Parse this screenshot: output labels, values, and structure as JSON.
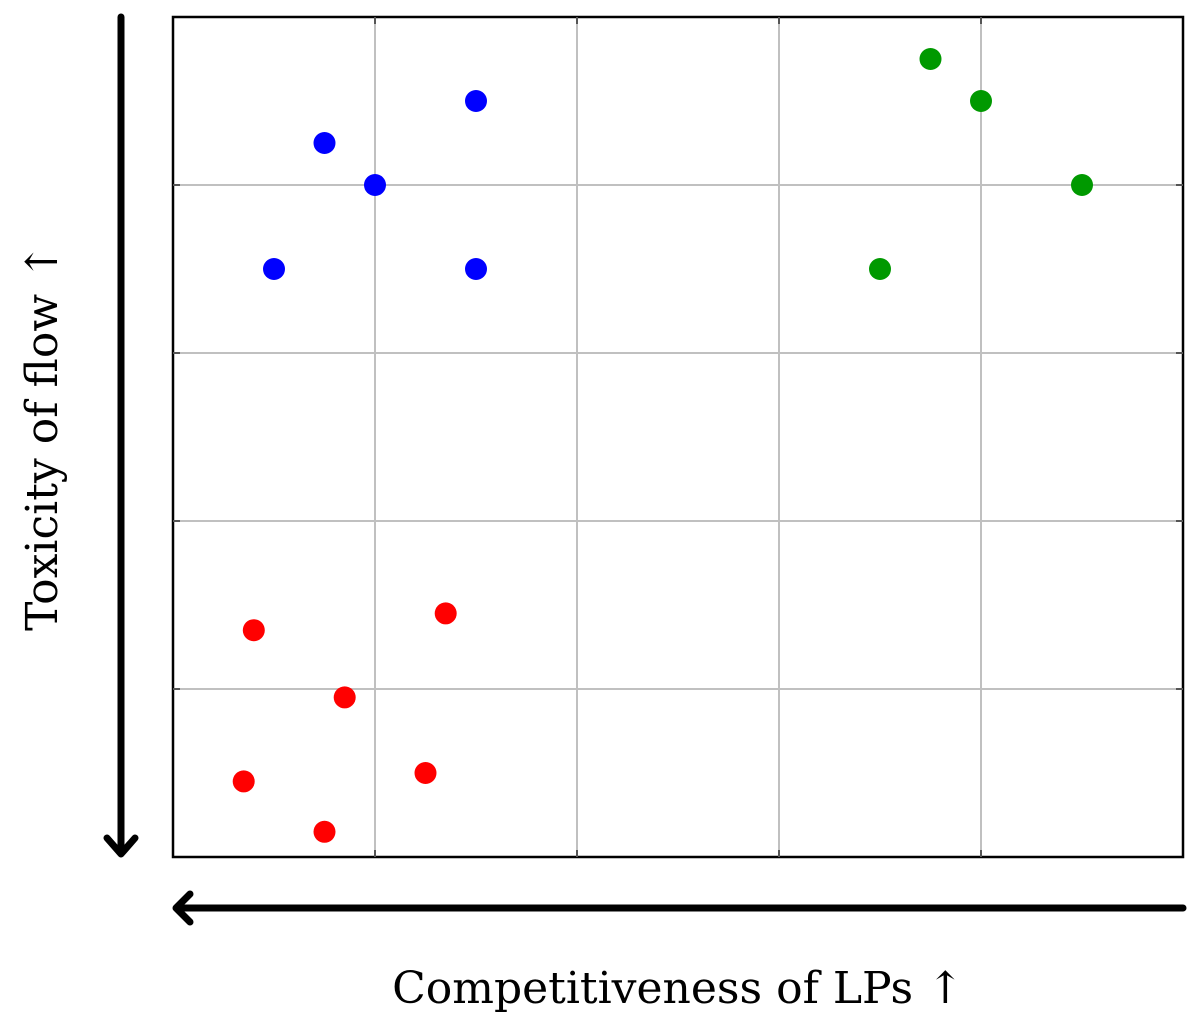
{
  "chart_data": {
    "type": "scatter",
    "title": "",
    "xlabel": "Competitiveness of LPs ↑",
    "ylabel": "Toxicity of flow ↑",
    "xlim": [
      0,
      10
    ],
    "ylim": [
      0,
      10
    ],
    "x_ticks": [
      2,
      4,
      6,
      8
    ],
    "y_ticks": [
      2,
      4,
      6,
      8
    ],
    "grid": true,
    "tick_labels": false,
    "legend": "none",
    "axis_arrows": "x points left, y points down",
    "series": [
      {
        "color": "#0000ff",
        "x": [
          1.0,
          1.5,
          2.0,
          3.0,
          3.0
        ],
        "y": [
          7.0,
          8.5,
          8.0,
          9.0,
          7.0
        ]
      },
      {
        "color": "#009900",
        "x": [
          7.0,
          7.5,
          8.0,
          9.0
        ],
        "y": [
          7.0,
          9.5,
          9.0,
          8.0
        ]
      },
      {
        "color": "#ff0000",
        "x": [
          0.8,
          0.7,
          1.5,
          1.7,
          2.5,
          2.7
        ],
        "y": [
          2.7,
          0.9,
          0.3,
          1.9,
          1.0,
          2.9
        ]
      }
    ]
  }
}
